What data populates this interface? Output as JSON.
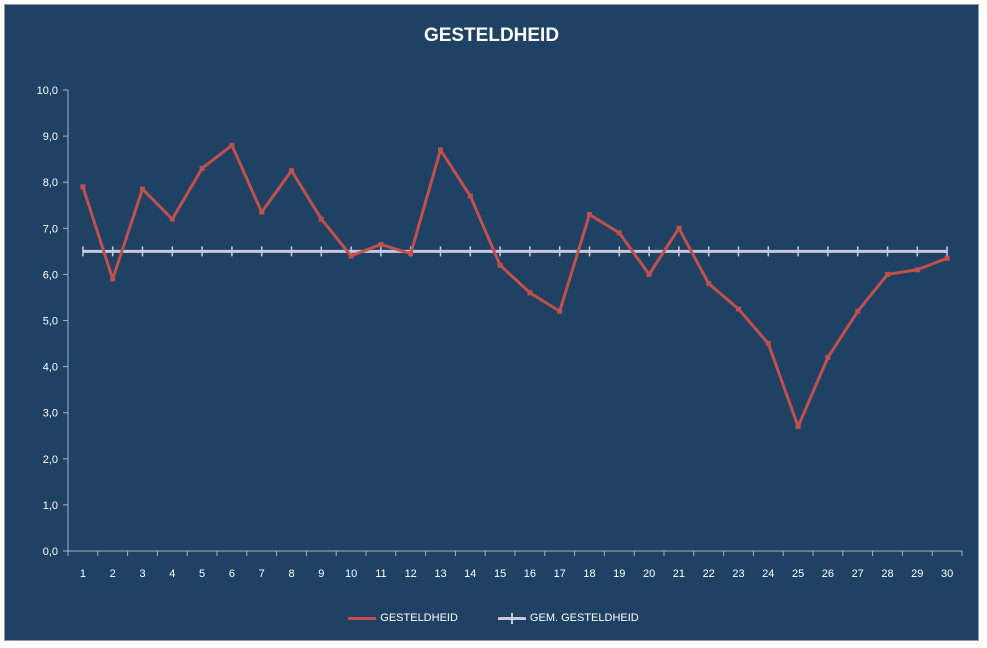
{
  "chart_data": {
    "type": "line",
    "title": "GESTELDHEID",
    "xlabel": "",
    "ylabel": "",
    "categories": [
      "1",
      "2",
      "3",
      "4",
      "5",
      "6",
      "7",
      "8",
      "9",
      "10",
      "11",
      "12",
      "13",
      "14",
      "15",
      "16",
      "17",
      "18",
      "19",
      "20",
      "21",
      "22",
      "23",
      "24",
      "25",
      "26",
      "27",
      "28",
      "29",
      "30"
    ],
    "ylim": [
      0,
      10
    ],
    "yticks": [
      "0,0",
      "1,0",
      "2,0",
      "3,0",
      "4,0",
      "5,0",
      "6,0",
      "7,0",
      "8,0",
      "9,0",
      "10,0"
    ],
    "series": [
      {
        "name": "GESTELDHEID",
        "color": "#c0504d",
        "values": [
          7.9,
          5.9,
          7.85,
          7.2,
          8.3,
          8.8,
          7.35,
          8.25,
          7.2,
          6.4,
          6.65,
          6.45,
          8.7,
          7.7,
          6.2,
          5.6,
          5.2,
          7.3,
          6.9,
          6.0,
          7.0,
          5.8,
          5.25,
          4.5,
          2.7,
          4.2,
          5.2,
          6.0,
          6.1,
          6.35
        ]
      },
      {
        "name": "GEM. GESTELDHEID",
        "color": "#c8c8dc",
        "values": [
          6.5,
          6.5,
          6.5,
          6.5,
          6.5,
          6.5,
          6.5,
          6.5,
          6.5,
          6.5,
          6.5,
          6.5,
          6.5,
          6.5,
          6.5,
          6.5,
          6.5,
          6.5,
          6.5,
          6.5,
          6.5,
          6.5,
          6.5,
          6.5,
          6.5,
          6.5,
          6.5,
          6.5,
          6.5,
          6.5
        ]
      }
    ],
    "grid": false,
    "legend": "bottom",
    "background": "#1f4163"
  }
}
